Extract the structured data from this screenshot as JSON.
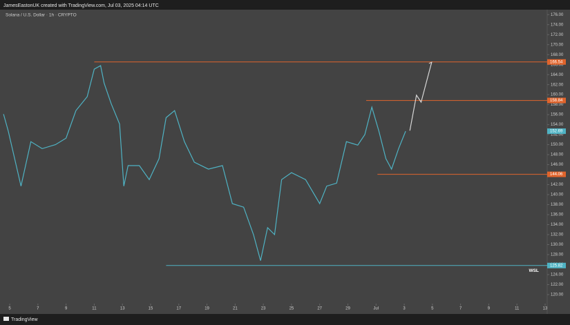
{
  "header": {
    "attribution": "JamesEastonUK created with TradingView.com, Jul 03, 2025 04:14 UTC"
  },
  "footer": {
    "brand": "TradingView"
  },
  "chart_data": {
    "type": "line",
    "title": "Solana / U.S. Dollar · 1h · CRYPTO",
    "xlim": [
      4.31,
      43.05
    ],
    "ylim": [
      118.2,
      177
    ],
    "xticks": [
      5,
      7,
      9,
      11,
      13,
      15,
      17,
      19,
      21,
      23,
      25,
      27,
      29,
      {
        "value": 31,
        "label": "Jul"
      },
      {
        "value": 33,
        "label": "3"
      },
      {
        "value": 35,
        "label": "5"
      },
      {
        "value": 37,
        "label": "7"
      },
      {
        "value": 39,
        "label": "9"
      },
      {
        "value": 41,
        "label": "11"
      },
      {
        "value": 43,
        "label": "13"
      }
    ],
    "yticks": [
      {
        "value": 120,
        "label": "120.00"
      },
      {
        "value": 122,
        "label": "122.00"
      },
      {
        "value": 124,
        "label": "124.00"
      },
      {
        "value": 126,
        "label": "126.00"
      },
      {
        "value": 128,
        "label": "128.00"
      },
      {
        "value": 130,
        "label": "130.00"
      },
      {
        "value": 132,
        "label": "132.00"
      },
      {
        "value": 134,
        "label": "134.00"
      },
      {
        "value": 136,
        "label": "136.00"
      },
      {
        "value": 138,
        "label": "138.00"
      },
      {
        "value": 140,
        "label": "140.00"
      },
      {
        "value": 142,
        "label": "142.00"
      },
      {
        "value": 144,
        "label": "144.00"
      },
      {
        "value": 146,
        "label": "146.00"
      },
      {
        "value": 148,
        "label": "148.00"
      },
      {
        "value": 150,
        "label": "150.00"
      },
      {
        "value": 152,
        "label": "152.00"
      },
      {
        "value": 154,
        "label": "154.00"
      },
      {
        "value": 156,
        "label": "156.00"
      },
      {
        "value": 158,
        "label": "158.00"
      },
      {
        "value": 160,
        "label": "160.00"
      },
      {
        "value": 162,
        "label": "162.00"
      },
      {
        "value": 164,
        "label": "164.00"
      },
      {
        "value": 166,
        "label": "166.00"
      },
      {
        "value": 168,
        "label": "168.00"
      },
      {
        "value": 170,
        "label": "170.00"
      },
      {
        "value": 172,
        "label": "172.00"
      },
      {
        "value": 174,
        "label": "174.00"
      },
      {
        "value": 176,
        "label": "176.00"
      }
    ],
    "grid": false,
    "series": [
      {
        "color": "#4fb3c4",
        "x": [
          4.56,
          4.9,
          5.8,
          6.5,
          7.3,
          8.25,
          9.0,
          9.7,
          10.5,
          11.0,
          11.45,
          11.7,
          12.2,
          12.8,
          13.1,
          13.4,
          14.2,
          14.9,
          15.6,
          16.1,
          16.7,
          17.4,
          18.1,
          19.1,
          20.1,
          20.8,
          21.6,
          22.3,
          22.8,
          23.3,
          23.8,
          24.3,
          25.0,
          26.0,
          27.0,
          27.5,
          28.2,
          28.9,
          29.7,
          30.2,
          30.7,
          31.2,
          31.7,
          32.1,
          32.6,
          33.1
        ],
        "values": [
          156.1,
          152.7,
          141.7,
          150.6,
          149.2,
          150,
          151.3,
          156.8,
          159.6,
          165.1,
          165.8,
          162.3,
          158.2,
          154.1,
          141.7,
          145.8,
          145.8,
          143,
          147.2,
          155.4,
          156.8,
          150.6,
          146.5,
          145.1,
          145.8,
          138.2,
          137.5,
          132,
          126.8,
          133.4,
          132,
          143,
          144.4,
          143,
          138.2,
          141.7,
          142.3,
          150.6,
          149.9,
          152,
          157.5,
          152.7,
          147.2,
          145.1,
          149.2,
          152.7
        ]
      },
      {
        "color": "#d8d8d8",
        "x": [
          33.4,
          33.87,
          34.2,
          34.95
        ],
        "values": [
          152.8,
          159.9,
          158.5,
          166.5
        ]
      }
    ],
    "levels": [
      {
        "value": 166.54,
        "label": "166.54",
        "color": "#e0642c",
        "x_start": 11
      },
      {
        "value": 158.84,
        "label": "158.84",
        "color": "#e0642c",
        "x_start": 30.3
      },
      {
        "value": 144.06,
        "label": "144.06",
        "color": "#e0642c",
        "x_start": 31.1
      },
      {
        "value": 125.82,
        "label": "125.82",
        "color": "#4fb3c4",
        "x_start": 16.1
      }
    ],
    "last_price": {
      "value": 152.69,
      "label": "152.69",
      "color": "#4fb3c4"
    },
    "annotations": [
      {
        "text": "WSL",
        "x": 42.2,
        "y": 124.8
      }
    ]
  }
}
